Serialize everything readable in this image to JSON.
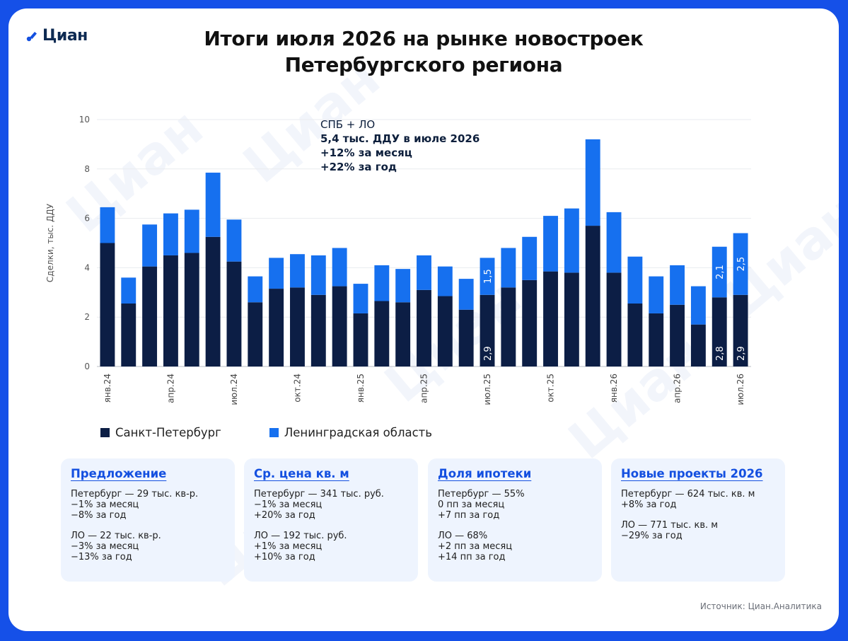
{
  "logo": {
    "text": "Циан"
  },
  "title": {
    "line1": "Итоги июля 2026 на рынке новостроек",
    "line2": "Петербургского региона"
  },
  "callout": {
    "line1": "СПБ + ЛО",
    "line2": "5,4 тыс. ДДУ в июле 2026",
    "line3": "+12% за месяц",
    "line4": "+22% за год"
  },
  "colors": {
    "spb": "#0c1e45",
    "lo": "#1670ef",
    "accent": "#1450e0"
  },
  "chart_data": {
    "type": "bar",
    "stacked": true,
    "ylabel": "Сделки, тыс. ДДУ",
    "ylim": [
      0,
      10
    ],
    "yticks": [
      "0",
      "2",
      "4",
      "6",
      "8",
      "10"
    ],
    "grid": true,
    "x_tick_labels": [
      {
        "index": 0,
        "label": "янв.24"
      },
      {
        "index": 3,
        "label": "апр.24"
      },
      {
        "index": 6,
        "label": "июл.24"
      },
      {
        "index": 9,
        "label": "окт.24"
      },
      {
        "index": 12,
        "label": "янв.25"
      },
      {
        "index": 15,
        "label": "апр.25"
      },
      {
        "index": 18,
        "label": "июл.25"
      },
      {
        "index": 21,
        "label": "окт.25"
      },
      {
        "index": 24,
        "label": "янв.26"
      },
      {
        "index": 27,
        "label": "апр.26"
      },
      {
        "index": 30,
        "label": "июл.26"
      }
    ],
    "series": [
      {
        "name": "Санкт-Петербург",
        "values": [
          5.0,
          2.55,
          4.05,
          4.5,
          4.6,
          5.25,
          4.25,
          2.6,
          3.15,
          3.2,
          2.9,
          3.25,
          2.15,
          2.65,
          2.6,
          3.1,
          2.85,
          2.3,
          2.9,
          3.2,
          3.5,
          3.85,
          3.8,
          5.7,
          3.8,
          2.55,
          2.15,
          2.5,
          1.7,
          2.8,
          2.9
        ]
      },
      {
        "name": "Ленинградская область",
        "values": [
          1.45,
          1.05,
          1.7,
          1.7,
          1.75,
          2.6,
          1.7,
          1.05,
          1.25,
          1.35,
          1.6,
          1.55,
          1.2,
          1.45,
          1.35,
          1.4,
          1.2,
          1.25,
          1.5,
          1.6,
          1.75,
          2.25,
          2.6,
          3.5,
          2.45,
          1.9,
          1.5,
          1.6,
          1.55,
          2.05,
          2.5
        ]
      }
    ],
    "data_labels": [
      {
        "index": 18,
        "spb": "2,9",
        "lo": "1,5"
      },
      {
        "index": 29,
        "spb": "2,8",
        "lo": "2,1"
      },
      {
        "index": 30,
        "spb": "2,9",
        "lo": "2,5"
      }
    ]
  },
  "legend": {
    "spb": "Санкт-Петербург",
    "lo": "Ленинградская область"
  },
  "panels": [
    {
      "title": "Предложение",
      "groups": [
        [
          "Петербург — 29 тыс. кв-р.",
          "−1% за месяц",
          "−8% за год"
        ],
        [
          "ЛО — 22 тыс. кв-р.",
          "−3% за месяц",
          "−13% за год"
        ]
      ]
    },
    {
      "title": "Ср. цена кв. м",
      "groups": [
        [
          "Петербург — 341 тыс. руб.",
          "−1% за месяц",
          "+20% за год"
        ],
        [
          "ЛО — 192 тыс. руб.",
          "+1% за месяц",
          "+10% за год"
        ]
      ]
    },
    {
      "title": "Доля ипотеки",
      "groups": [
        [
          "Петербург — 55%",
          "0 пп за месяц",
          "+7 пп за год"
        ],
        [
          "ЛО — 68%",
          "+2 пп за месяц",
          "+14 пп за год"
        ]
      ]
    },
    {
      "title": "Новые проекты 2026",
      "groups": [
        [
          "Петербург — 624 тыс. кв. м",
          "+8% за год"
        ],
        [
          "ЛО — 771 тыс. кв. м",
          "−29% за год"
        ]
      ]
    }
  ],
  "source": "Источник: Циан.Аналитика",
  "watermark": "Циан"
}
